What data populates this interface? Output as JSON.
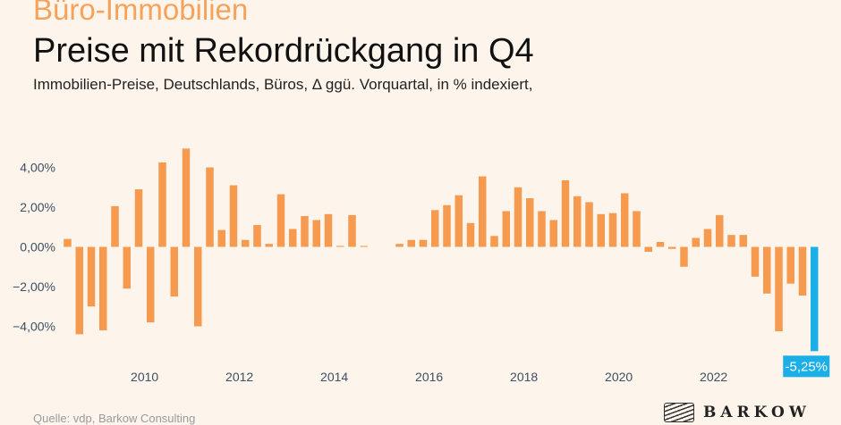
{
  "header": {
    "kicker": "Büro-Immobilien",
    "title": "Preise mit Rekordrückgang in Q4",
    "subtitle": "Immobilien-Preise, Deutschlands, Büros, Δ ggü. Vorquartal, in % indexiert,"
  },
  "footer": {
    "source": "Quelle: vdp, Barkow Consulting",
    "logo_text": "BARKOW"
  },
  "colors": {
    "background": "#fdf5ec",
    "bar_default": "#f59a4e",
    "bar_highlight": "#1aafe6",
    "axis_text": "#3d4f63"
  },
  "chart_data": {
    "type": "bar",
    "ylim": [
      -5.5,
      5.0
    ],
    "yticks": [
      4,
      2,
      0,
      -2,
      -4
    ],
    "ytick_labels": [
      "4,00%",
      "2,00%",
      "0,00%",
      "−2,00%",
      "−4,00%"
    ],
    "xtick_labels": [
      "2010",
      "2012",
      "2014",
      "2016",
      "2018",
      "2020",
      "2022"
    ],
    "xtick_years": [
      2010,
      2012,
      2014,
      2016,
      2018,
      2020,
      2022
    ],
    "x_start": "2008 Q2",
    "values": [
      0.4,
      -4.4,
      -3.0,
      -4.2,
      2.05,
      -2.1,
      2.9,
      -3.8,
      4.25,
      -2.5,
      4.95,
      -4.0,
      4.0,
      0.85,
      3.1,
      0.35,
      1.1,
      0.15,
      2.65,
      0.9,
      1.55,
      1.35,
      1.65,
      0.05,
      1.6,
      0.05,
      0.0,
      0.0,
      0.15,
      0.35,
      0.35,
      1.85,
      2.1,
      2.6,
      1.2,
      3.55,
      0.55,
      1.8,
      3.0,
      2.45,
      1.8,
      1.35,
      3.35,
      2.55,
      2.25,
      1.65,
      1.7,
      2.7,
      1.8,
      -0.25,
      0.25,
      -0.1,
      -1.0,
      0.45,
      0.9,
      1.6,
      0.6,
      0.6,
      -1.5,
      -2.35,
      -4.25,
      -1.85,
      -2.45,
      -5.25
    ],
    "highlight_index": 63,
    "highlight_label": "-5,25%"
  }
}
